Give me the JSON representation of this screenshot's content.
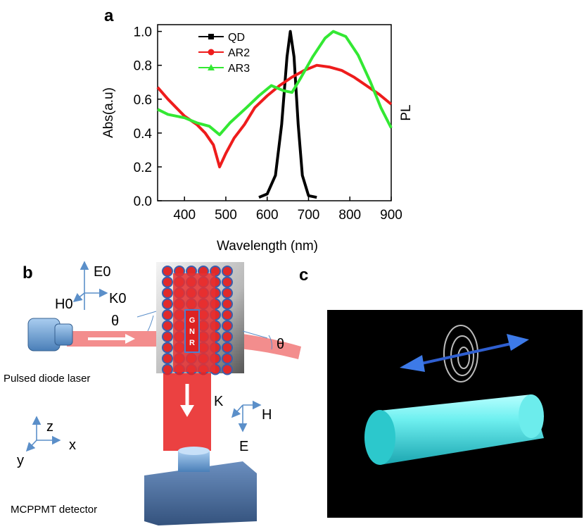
{
  "chart_data": {
    "type": "line",
    "panel_label": "a",
    "x_label": "Wavelength (nm)",
    "y_label": "Abs(a.u)",
    "y2_label": "PL",
    "xlim": [
      335,
      900
    ],
    "xticks": [
      400,
      500,
      600,
      700,
      800,
      900
    ],
    "ylim": [
      0,
      1.04
    ],
    "yticks": [
      {
        "value": 0,
        "label": "0.0"
      },
      0.2,
      0.4,
      0.6,
      0.8,
      {
        "value": 1,
        "label": "1.0"
      }
    ],
    "legend": "top-left",
    "series": [
      {
        "name": "QD",
        "color": "#000000",
        "marker": "square",
        "x": [
          580,
          600,
          620,
          635,
          648,
          656,
          665,
          675,
          685,
          700,
          720
        ],
        "values": [
          0.02,
          0.04,
          0.15,
          0.45,
          0.85,
          1.0,
          0.85,
          0.45,
          0.15,
          0.03,
          0.02
        ]
      },
      {
        "name": "AR2",
        "color": "#ee1c1c",
        "marker": "circle",
        "x": [
          335,
          360,
          380,
          400,
          430,
          450,
          470,
          485,
          500,
          520,
          545,
          570,
          600,
          630,
          660,
          690,
          720,
          750,
          780,
          810,
          840,
          870,
          900
        ],
        "values": [
          0.67,
          0.6,
          0.55,
          0.5,
          0.45,
          0.4,
          0.33,
          0.2,
          0.28,
          0.37,
          0.45,
          0.55,
          0.62,
          0.68,
          0.73,
          0.77,
          0.8,
          0.79,
          0.77,
          0.73,
          0.68,
          0.63,
          0.57
        ]
      },
      {
        "name": "AR3",
        "color": "#33e833",
        "marker": "triangle",
        "x": [
          335,
          360,
          400,
          430,
          460,
          485,
          510,
          550,
          580,
          610,
          640,
          660,
          680,
          710,
          740,
          760,
          790,
          820,
          850,
          875,
          900
        ],
        "values": [
          0.54,
          0.51,
          0.49,
          0.46,
          0.44,
          0.39,
          0.46,
          0.55,
          0.62,
          0.68,
          0.65,
          0.64,
          0.72,
          0.85,
          0.96,
          1.0,
          0.97,
          0.86,
          0.7,
          0.55,
          0.43
        ]
      }
    ]
  },
  "diagram_b": {
    "panel_label": "b",
    "e0": "E0",
    "k0": "K0",
    "h0": "H0",
    "theta_in": "θ",
    "theta_out": "θ",
    "gnr": [
      "G",
      "N",
      "R"
    ],
    "laser": "Pulsed diode laser",
    "k": "K",
    "h": "H",
    "e": "E",
    "z": "z",
    "x": "x",
    "y": "y",
    "detector": "MCPPMT detector"
  },
  "diagram_c": {
    "panel_label": "c"
  }
}
